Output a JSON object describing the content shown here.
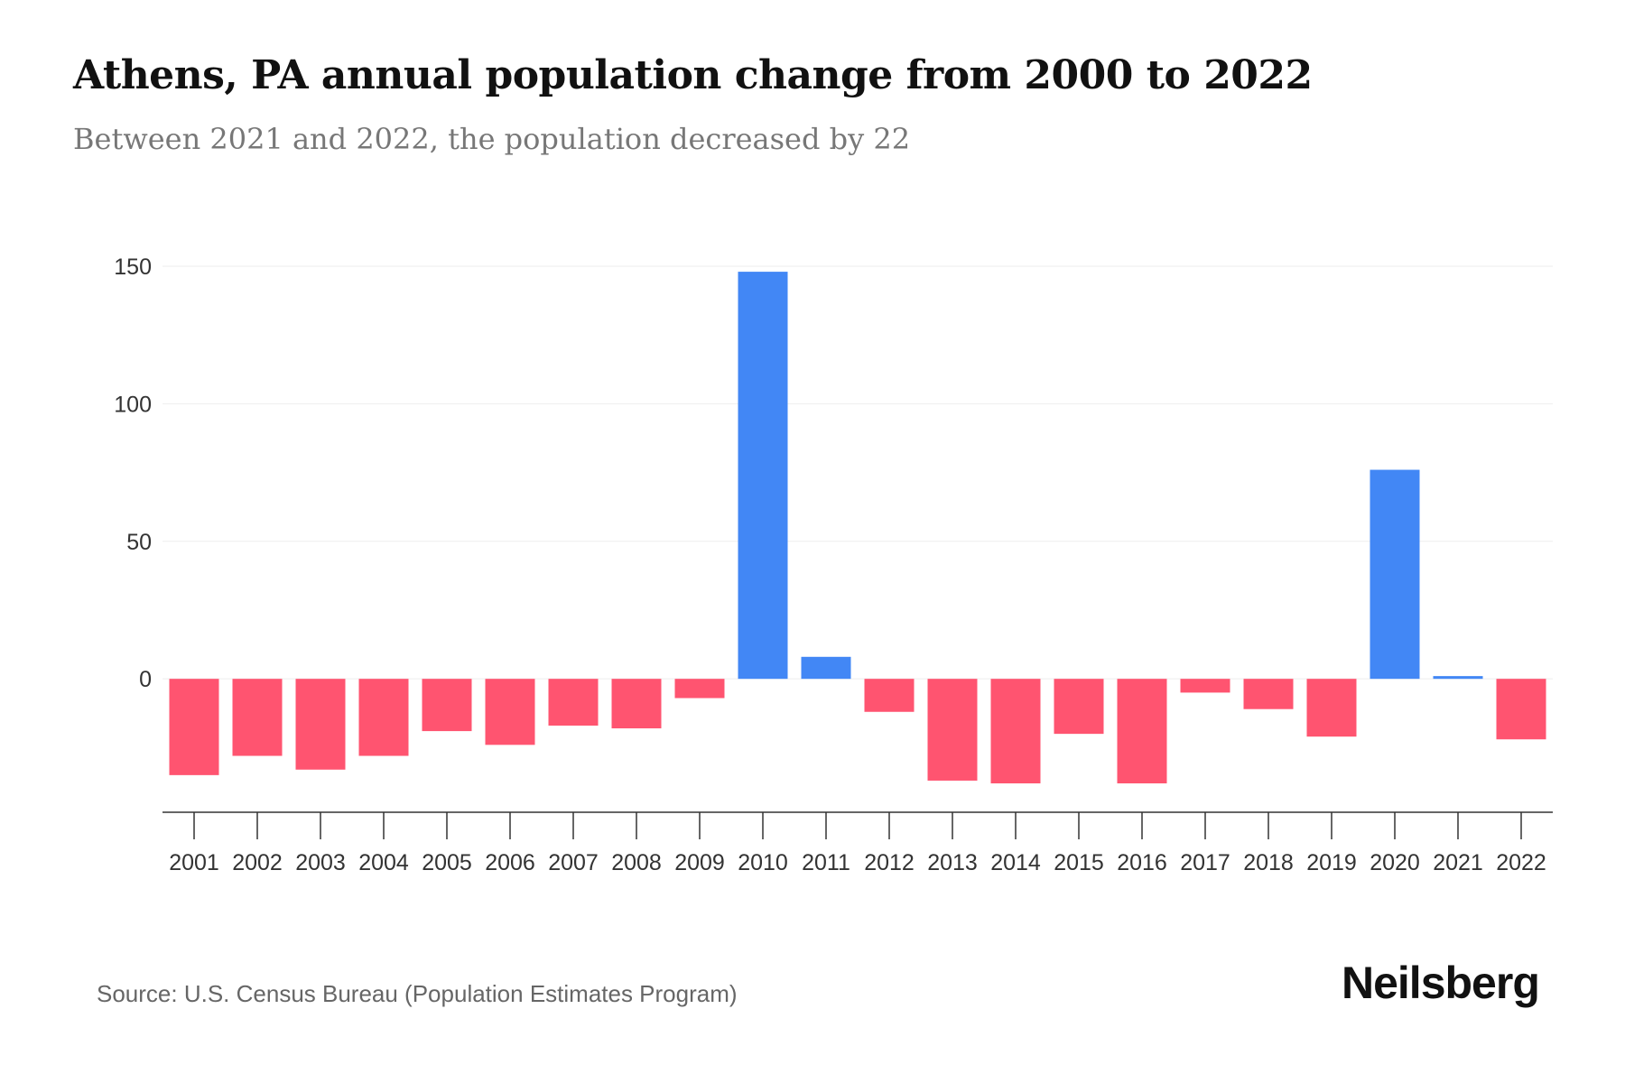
{
  "chart_data": {
    "type": "bar",
    "title": "Athens, PA annual population change from 2000 to 2022",
    "subtitle": "Between 2021 and 2022, the population decreased by 22",
    "categories": [
      "2001",
      "2002",
      "2003",
      "2004",
      "2005",
      "2006",
      "2007",
      "2008",
      "2009",
      "2010",
      "2011",
      "2012",
      "2013",
      "2014",
      "2015",
      "2016",
      "2017",
      "2018",
      "2019",
      "2020",
      "2021",
      "2022"
    ],
    "values": [
      -35,
      -28,
      -33,
      -28,
      -19,
      -24,
      -17,
      -18,
      -7,
      148,
      8,
      -12,
      -37,
      -38,
      -20,
      -38,
      -5,
      -11,
      -21,
      76,
      1,
      -22
    ],
    "yticks": [
      0,
      50,
      100,
      150
    ],
    "ylim": [
      -48.5,
      150
    ],
    "xlabel": "",
    "ylabel": "",
    "grid": true,
    "colors": {
      "positive": "#4287f5",
      "negative": "#ff5470"
    }
  },
  "source": "Source: U.S. Census Bureau (Population Estimates Program)",
  "logo": "Neilsberg"
}
